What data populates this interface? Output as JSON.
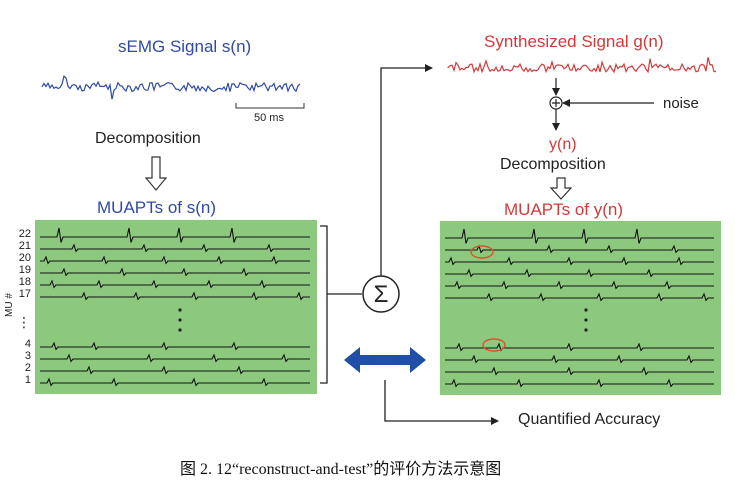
{
  "left": {
    "signal_title": "sEMG Signal  s(n)",
    "scale_label": "50 ms",
    "decomposition_label": "Decomposition",
    "muapts_title": "MUAPTs of s(n)",
    "axis_label": "MU #",
    "mu_labels_top": [
      "22",
      "21",
      "20",
      "19",
      "18",
      "17"
    ],
    "mu_labels_bottom": [
      "4",
      "3",
      "2",
      "1"
    ],
    "ellipsis": "⋮"
  },
  "right": {
    "signal_title": "Synthesized Signal g(n)",
    "noise_label": "noise",
    "y_label": "y(n)",
    "decomposition_label": "Decomposition",
    "muapts_title": "MUAPTs of y(n)"
  },
  "center": {
    "sum_symbol": "Σ",
    "plus_symbol": "+",
    "accuracy_label": "Quantified Accuracy"
  },
  "caption": "图 2. 12“reconstruct-and-test”的评价方法示意图",
  "colors": {
    "panel_green": "#8cc97f",
    "blue_text": "#2f4aa6",
    "red_text": "#d23a3a",
    "double_arrow": "#1f4fa8"
  }
}
